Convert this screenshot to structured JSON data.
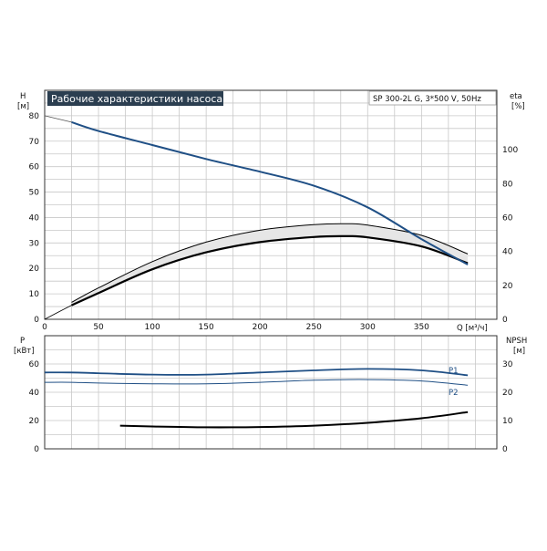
{
  "title": "Рабочие характеристики насоса",
  "model": "SP 300-2L G, 3*500 V, 50Hz",
  "colors": {
    "head": "#1f4f85",
    "power": "#1f4f85",
    "eff": "#000000",
    "title_bg": "#2b3e50",
    "grid": "#c8c8c8"
  },
  "chart_data": [
    {
      "type": "line",
      "grid": true,
      "x_axis": {
        "label": "Q [м³/ч]",
        "range": [
          0,
          420
        ],
        "ticks": [
          0,
          50,
          100,
          150,
          200,
          250,
          300,
          350
        ]
      },
      "left_axis": {
        "label_top": "H",
        "label_unit": "[м]",
        "range": [
          0,
          90
        ],
        "ticks": [
          0,
          10,
          20,
          30,
          40,
          50,
          60,
          70,
          80
        ]
      },
      "right_axis": {
        "label_top": "eta",
        "label_unit": "[%]",
        "range": [
          0,
          135
        ],
        "ticks": [
          0,
          20,
          40,
          60,
          80,
          100
        ]
      },
      "series": [
        {
          "key": "head",
          "axis": "left",
          "x": [
            25,
            50,
            100,
            150,
            200,
            250,
            300,
            350,
            393
          ],
          "y": [
            77.5,
            74,
            68.5,
            63,
            58,
            52.5,
            44,
            31.5,
            21.5
          ]
        },
        {
          "key": "head_ext",
          "axis": "left",
          "x": [
            0,
            25
          ],
          "y": [
            80,
            77.5
          ]
        },
        {
          "key": "eff_upper",
          "axis": "right",
          "x": [
            25,
            50,
            100,
            150,
            200,
            250,
            280,
            300,
            350,
            393
          ],
          "y": [
            10,
            18.5,
            34,
            45.5,
            52.5,
            55.8,
            56.3,
            55.5,
            49.5,
            38.5
          ]
        },
        {
          "key": "eff_lower",
          "axis": "right",
          "x": [
            25,
            50,
            100,
            150,
            200,
            250,
            280,
            300,
            350,
            393
          ],
          "y": [
            8.3,
            15.5,
            29.5,
            39.5,
            45.5,
            48.5,
            49,
            48.3,
            43,
            33
          ]
        },
        {
          "key": "eff_ext",
          "axis": "right",
          "x": [
            0,
            25
          ],
          "y": [
            0,
            8.3
          ]
        }
      ]
    },
    {
      "type": "line",
      "grid": true,
      "x_axis": {
        "range": [
          0,
          420
        ]
      },
      "left_axis": {
        "label_top": "P",
        "label_unit": "[кВт]",
        "range": [
          0,
          80
        ],
        "ticks": [
          0,
          20,
          40,
          60
        ]
      },
      "right_axis": {
        "label_top": "NPSH",
        "label_unit": "[м]",
        "range": [
          0,
          40
        ],
        "ticks": [
          0,
          10,
          20,
          30
        ]
      },
      "series": [
        {
          "name": "P1",
          "axis": "left",
          "x": [
            0,
            25,
            50,
            100,
            150,
            200,
            250,
            300,
            350,
            393
          ],
          "y": [
            54,
            54,
            53.5,
            52.5,
            52.5,
            54,
            55.5,
            56.5,
            55.5,
            52
          ]
        },
        {
          "name": "P2",
          "axis": "left",
          "x": [
            0,
            25,
            50,
            100,
            150,
            200,
            250,
            300,
            350,
            393
          ],
          "y": [
            47,
            47,
            46.5,
            46,
            46,
            47,
            48.5,
            49,
            48,
            45
          ]
        },
        {
          "key": "npsh",
          "axis": "right",
          "x": [
            70,
            100,
            150,
            200,
            250,
            300,
            350,
            393
          ],
          "y": [
            8.2,
            7.9,
            7.6,
            7.7,
            8.2,
            9.2,
            10.8,
            13
          ]
        }
      ]
    }
  ]
}
